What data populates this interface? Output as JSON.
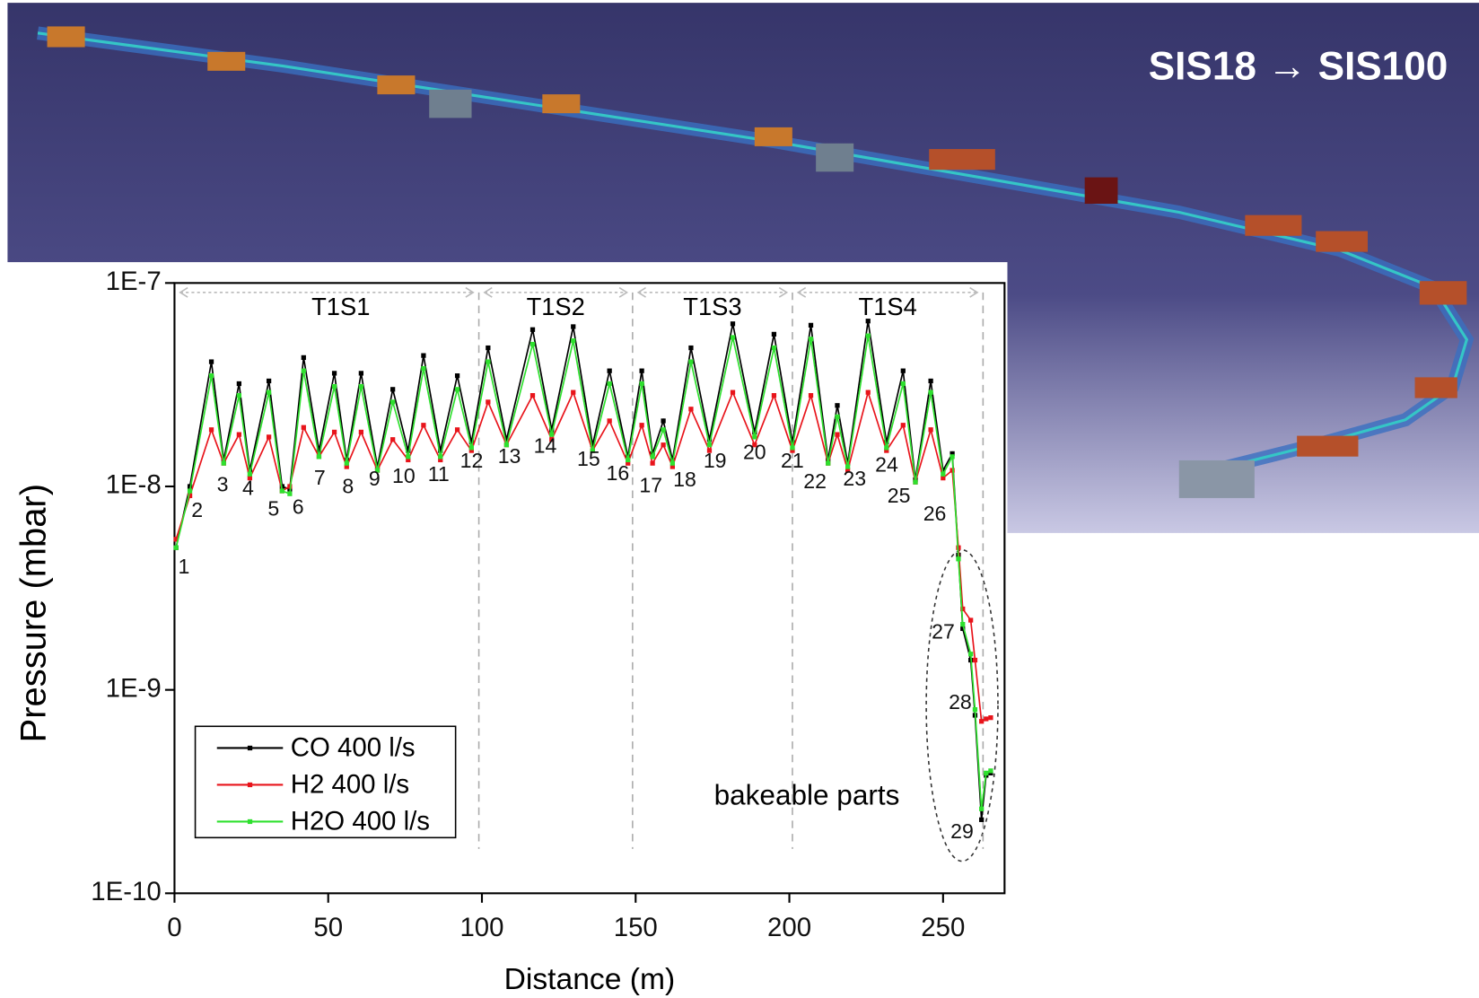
{
  "slide_title": "SIS18 → SIS100",
  "chart_data": {
    "type": "line",
    "log_y": true,
    "xlabel": "Distance (m)",
    "ylabel": "Pressure (mbar)",
    "annotation": "bakeable parts",
    "xlim": [
      0,
      270
    ],
    "ylim": [
      1e-10,
      1e-07
    ],
    "xticks": [
      0,
      50,
      100,
      150,
      200,
      250
    ],
    "yticks": [
      {
        "value": 1e-10,
        "label": "1E-10"
      },
      {
        "value": 1e-09,
        "label": "1E-9"
      },
      {
        "value": 1e-08,
        "label": "1E-8"
      },
      {
        "value": 1e-07,
        "label": "1E-7"
      }
    ],
    "legend": "bottom-left",
    "sections": [
      {
        "label": "T1S1",
        "start": 0,
        "end": 99
      },
      {
        "label": "T1S2",
        "start": 99,
        "end": 149
      },
      {
        "label": "T1S3",
        "start": 149,
        "end": 201
      },
      {
        "label": "T1S4",
        "start": 201,
        "end": 263
      }
    ],
    "point_labels": [
      "1",
      "2",
      "3",
      "4",
      "5",
      "6",
      "7",
      "8",
      "9",
      "10",
      "11",
      "12",
      "13",
      "14",
      "15",
      "16",
      "17",
      "18",
      "19",
      "20",
      "21",
      "22",
      "23",
      "24",
      "25",
      "26",
      "27",
      "28",
      "29"
    ],
    "x": [
      0.5,
      5,
      12,
      16,
      21,
      24.5,
      30.7,
      35,
      37.5,
      42,
      47,
      52,
      56,
      60.7,
      66,
      71,
      76,
      81,
      86.5,
      92,
      96.6,
      102,
      108,
      116.5,
      122.7,
      129.7,
      136,
      141.5,
      147.5,
      152,
      155.5,
      159,
      162,
      168,
      174,
      181.6,
      188.7,
      195,
      201,
      207,
      212.6,
      215.6,
      219,
      225.6,
      231.6,
      237,
      241,
      246,
      250,
      253,
      255,
      256.4,
      259,
      260.4,
      262.5,
      264,
      265.5
    ],
    "series": [
      {
        "name": "CO 400 l/s",
        "color": "#000000",
        "values": [
          5e-09,
          1e-08,
          4.1e-08,
          1.35e-08,
          3.2e-08,
          1.2e-08,
          3.3e-08,
          1e-08,
          9.7e-09,
          4.3e-08,
          1.5e-08,
          3.6e-08,
          1.35e-08,
          3.6e-08,
          1.25e-08,
          3e-08,
          1.5e-08,
          4.4e-08,
          1.5e-08,
          3.5e-08,
          1.65e-08,
          4.8e-08,
          1.7e-08,
          5.9e-08,
          1.9e-08,
          6.1e-08,
          1.6e-08,
          3.7e-08,
          1.4e-08,
          3.7e-08,
          1.45e-08,
          2.1e-08,
          1.35e-08,
          4.8e-08,
          1.7e-08,
          6.3e-08,
          1.85e-08,
          5.6e-08,
          1.65e-08,
          6.2e-08,
          1.35e-08,
          2.5e-08,
          1.3e-08,
          6.5e-08,
          1.65e-08,
          3.7e-08,
          1.08e-08,
          3.3e-08,
          1.2e-08,
          1.45e-08,
          4.6e-09,
          2e-09,
          1.4e-09,
          7.5e-10,
          2.3e-10,
          3.8e-10,
          3.9e-10
        ]
      },
      {
        "name": "H2 400 l/s",
        "color": "#e8141b",
        "values": [
          5.5e-09,
          9e-09,
          1.9e-08,
          1.3e-08,
          1.8e-08,
          1.1e-08,
          1.75e-08,
          9.5e-09,
          1e-08,
          1.95e-08,
          1.4e-08,
          1.85e-08,
          1.25e-08,
          1.85e-08,
          1.2e-08,
          1.7e-08,
          1.35e-08,
          2e-08,
          1.35e-08,
          1.9e-08,
          1.5e-08,
          2.6e-08,
          1.6e-08,
          2.8e-08,
          1.7e-08,
          2.9e-08,
          1.5e-08,
          2.1e-08,
          1.3e-08,
          2e-08,
          1.3e-08,
          1.6e-08,
          1.25e-08,
          2.4e-08,
          1.5e-08,
          2.9e-08,
          1.6e-08,
          2.8e-08,
          1.5e-08,
          2.8e-08,
          1.3e-08,
          1.8e-08,
          1.2e-08,
          2.9e-08,
          1.5e-08,
          2e-08,
          1.05e-08,
          1.9e-08,
          1.1e-08,
          1.2e-08,
          5e-09,
          2.5e-09,
          2.2e-09,
          1.4e-09,
          7e-10,
          7.2e-10,
          7.3e-10
        ]
      },
      {
        "name": "H2O 400 l/s",
        "color": "#2ee02e",
        "values": [
          5e-09,
          9.5e-09,
          3.5e-08,
          1.3e-08,
          2.8e-08,
          1.15e-08,
          2.9e-08,
          9.5e-09,
          9.2e-09,
          3.7e-08,
          1.4e-08,
          3.1e-08,
          1.3e-08,
          3.1e-08,
          1.2e-08,
          2.6e-08,
          1.4e-08,
          3.8e-08,
          1.4e-08,
          3e-08,
          1.55e-08,
          4.1e-08,
          1.6e-08,
          5e-08,
          1.8e-08,
          5.2e-08,
          1.5e-08,
          3.2e-08,
          1.35e-08,
          3.2e-08,
          1.4e-08,
          1.9e-08,
          1.3e-08,
          4.1e-08,
          1.6e-08,
          5.4e-08,
          1.75e-08,
          4.8e-08,
          1.55e-08,
          5.3e-08,
          1.3e-08,
          2.2e-08,
          1.25e-08,
          5.5e-08,
          1.55e-08,
          3.2e-08,
          1.05e-08,
          2.9e-08,
          1.15e-08,
          1.4e-08,
          4.4e-09,
          2.1e-09,
          1.5e-09,
          8e-10,
          2.6e-10,
          3.9e-10,
          4e-10
        ]
      }
    ]
  }
}
